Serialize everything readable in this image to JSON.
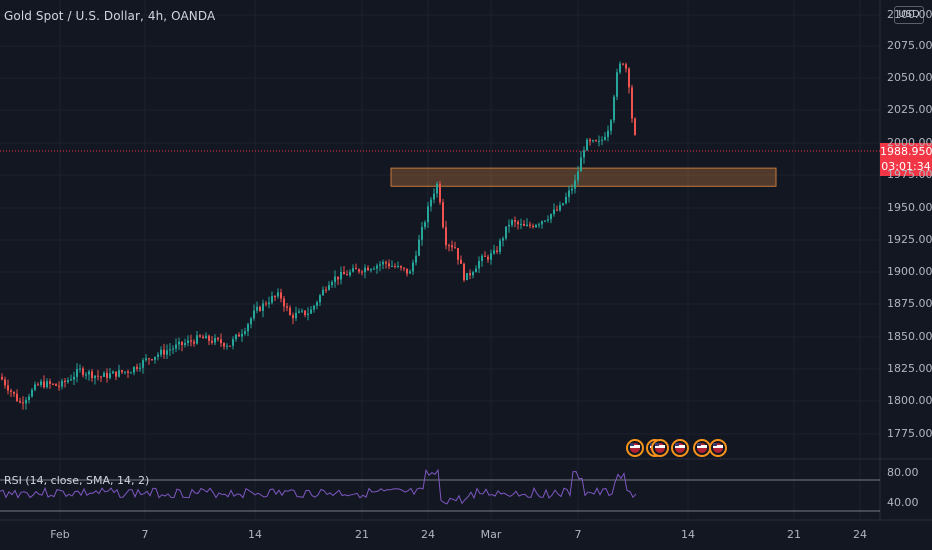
{
  "symbol": {
    "title": "Gold Spot / U.S. Dollar, 4h, OANDA",
    "currency": "USD"
  },
  "last_price": {
    "value": "1988.950",
    "countdown": "03:01:34",
    "color": "#f23645"
  },
  "price_axis": {
    "ticks": [
      "2100.000",
      "2075.000",
      "2050.000",
      "2025.000",
      "2000.000",
      "1975.000",
      "1950.000",
      "1925.000",
      "1900.000",
      "1875.000",
      "1850.000",
      "1825.000",
      "1800.000",
      "1775.000"
    ]
  },
  "time_axis": {
    "ticks": [
      "Feb",
      "7",
      "14",
      "21",
      "24",
      "Mar",
      "7",
      "14",
      "21",
      "24"
    ]
  },
  "rsi": {
    "label": "RSI (14, close, SMA, 14, 2)",
    "upper_level": "80.00",
    "lower_level": "40.00"
  },
  "zone": {
    "low": 1962,
    "high": 1976,
    "color": "#c57a3c"
  },
  "colors": {
    "up": "#26a69a",
    "down": "#ef5350",
    "background": "#131722",
    "rsi_line": "#7e57c2"
  },
  "events_icon": "us-flag-event-icon"
}
